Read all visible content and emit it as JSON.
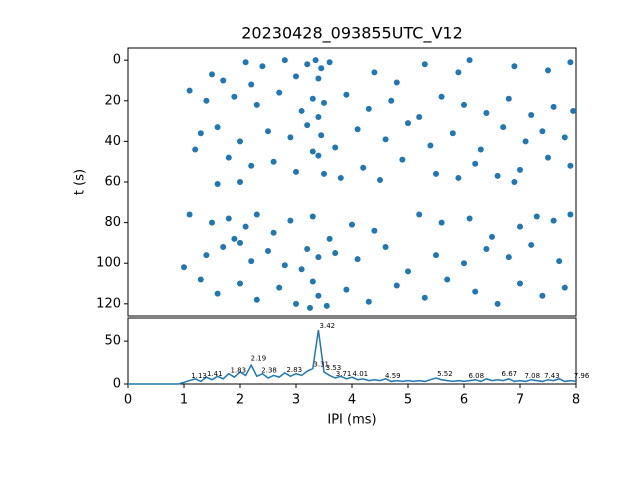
{
  "chart_data": [
    {
      "type": "scatter",
      "title": "20230428_093855UTC_V12",
      "y_label": "t (s)",
      "color": "#1f77b4",
      "xlim": [
        0,
        8
      ],
      "ylim": [
        126,
        -6
      ],
      "yticks": [
        0,
        20,
        40,
        60,
        80,
        100,
        120
      ],
      "x": [
        2.1,
        2.4,
        2.8,
        3.2,
        3.35,
        3.45,
        3.6,
        4.4,
        5.3,
        6.1,
        6.9,
        7.5,
        7.9,
        1.5,
        1.7,
        2.2,
        3.0,
        3.4,
        4.8,
        5.9,
        1.1,
        1.4,
        1.9,
        2.3,
        2.7,
        3.1,
        3.3,
        3.5,
        3.9,
        4.3,
        4.7,
        5.2,
        5.6,
        6.0,
        6.4,
        6.8,
        7.2,
        7.6,
        7.95,
        3.4,
        1.3,
        1.6,
        2.0,
        2.5,
        2.9,
        3.2,
        3.45,
        3.7,
        4.1,
        4.6,
        5.0,
        5.4,
        5.8,
        6.3,
        6.7,
        7.1,
        7.4,
        7.8,
        1.2,
        3.3,
        1.8,
        2.2,
        2.6,
        3.0,
        3.4,
        3.8,
        4.2,
        4.9,
        5.5,
        6.2,
        6.6,
        7.0,
        7.5,
        7.9,
        2.0,
        3.5,
        4.5,
        5.9,
        6.9,
        1.6,
        1.1,
        1.5,
        1.8,
        2.1,
        2.3,
        2.6,
        2.9,
        3.3,
        3.6,
        4.0,
        4.4,
        5.2,
        5.6,
        6.1,
        6.5,
        7.0,
        7.3,
        7.6,
        7.9,
        1.9,
        1.0,
        1.4,
        1.7,
        2.0,
        2.2,
        2.5,
        2.8,
        3.2,
        3.4,
        3.7,
        4.1,
        4.6,
        5.0,
        5.5,
        6.0,
        6.4,
        6.8,
        7.2,
        7.7,
        3.1,
        1.3,
        1.6,
        2.0,
        2.3,
        2.7,
        3.0,
        3.3,
        3.4,
        3.55,
        3.9,
        4.3,
        4.8,
        5.3,
        5.7,
        6.2,
        6.6,
        7.0,
        7.4,
        7.8,
        3.25
      ],
      "values": [
        1,
        3,
        0,
        2,
        0,
        4,
        1,
        6,
        2,
        0,
        3,
        5,
        1,
        7,
        10,
        12,
        8,
        9,
        11,
        6,
        15,
        20,
        18,
        22,
        16,
        25,
        19,
        21,
        17,
        24,
        20,
        28,
        18,
        22,
        26,
        19,
        27,
        23,
        25,
        28,
        36,
        33,
        40,
        35,
        38,
        32,
        37,
        43,
        34,
        39,
        31,
        42,
        36,
        44,
        33,
        40,
        35,
        38,
        44,
        45,
        48,
        52,
        50,
        55,
        47,
        58,
        53,
        49,
        56,
        51,
        57,
        54,
        48,
        52,
        60,
        56,
        59,
        58,
        60,
        61,
        76,
        80,
        78,
        82,
        76,
        85,
        79,
        77,
        88,
        81,
        84,
        76,
        80,
        78,
        87,
        82,
        77,
        79,
        76,
        88,
        102,
        96,
        92,
        90,
        99,
        94,
        101,
        93,
        97,
        95,
        98,
        92,
        104,
        96,
        100,
        93,
        97,
        91,
        99,
        103,
        108,
        115,
        110,
        118,
        112,
        120,
        109,
        116,
        121,
        113,
        119,
        111,
        117,
        108,
        114,
        120,
        110,
        116,
        112,
        122
      ]
    },
    {
      "type": "line",
      "x_label": "IPI (ms)",
      "color": "#1f77b4",
      "xlim": [
        0,
        8
      ],
      "xticks": [
        0,
        1,
        2,
        3,
        4,
        5,
        6,
        7,
        8
      ],
      "ylim": [
        0,
        77
      ],
      "yticks": [
        0,
        50
      ],
      "x": [
        0,
        0.1,
        0.2,
        0.3,
        0.4,
        0.5,
        0.6,
        0.7,
        0.8,
        0.9,
        1,
        1.1,
        1.2,
        1.3,
        1.4,
        1.5,
        1.6,
        1.7,
        1.8,
        1.9,
        2,
        2.1,
        2.2,
        2.3,
        2.4,
        2.5,
        2.6,
        2.7,
        2.8,
        2.9,
        3,
        3.1,
        3.2,
        3.3,
        3.4,
        3.5,
        3.6,
        3.7,
        3.8,
        3.9,
        4,
        4.1,
        4.2,
        4.3,
        4.4,
        4.5,
        4.6,
        4.7,
        4.8,
        4.9,
        5,
        5.1,
        5.2,
        5.3,
        5.4,
        5.5,
        5.6,
        5.7,
        5.8,
        5.9,
        6,
        6.1,
        6.2,
        6.3,
        6.4,
        6.5,
        6.6,
        6.7,
        6.8,
        6.9,
        7,
        7.1,
        7.2,
        7.3,
        7.4,
        7.5,
        7.6,
        7.7,
        7.8,
        7.9,
        8
      ],
      "values": [
        0,
        0,
        0,
        0,
        0,
        0,
        0,
        0,
        0,
        0,
        2,
        4,
        6,
        3,
        8,
        5,
        9,
        6,
        12,
        8,
        14,
        10,
        22,
        9,
        12,
        7,
        10,
        8,
        13,
        9,
        12,
        10,
        15,
        18,
        63,
        14,
        10,
        7,
        9,
        6,
        8,
        5,
        6,
        4,
        5,
        4,
        6,
        3,
        4,
        3,
        4,
        3,
        4,
        3,
        5,
        7,
        5,
        4,
        3,
        4,
        3,
        4,
        5,
        3,
        6,
        4,
        5,
        4,
        6,
        3,
        4,
        3,
        5,
        4,
        3,
        5,
        4,
        6,
        3,
        4,
        3
      ],
      "annotations": [
        {
          "text": "1.13",
          "x": 1.13,
          "y": 6
        },
        {
          "text": "1.41",
          "x": 1.41,
          "y": 8
        },
        {
          "text": "1.83",
          "x": 1.83,
          "y": 12
        },
        {
          "text": "2.19",
          "x": 2.19,
          "y": 26
        },
        {
          "text": "2.38",
          "x": 2.38,
          "y": 12
        },
        {
          "text": "2.83",
          "x": 2.83,
          "y": 13
        },
        {
          "text": "3.31",
          "x": 3.31,
          "y": 19
        },
        {
          "text": "3.42",
          "x": 3.42,
          "y": 64
        },
        {
          "text": "3.53",
          "x": 3.53,
          "y": 15
        },
        {
          "text": "3.71",
          "x": 3.71,
          "y": 8
        },
        {
          "text": "4.01",
          "x": 4.01,
          "y": 8
        },
        {
          "text": "4.59",
          "x": 4.59,
          "y": 6
        },
        {
          "text": "5.52",
          "x": 5.52,
          "y": 8
        },
        {
          "text": "6.08",
          "x": 6.08,
          "y": 6
        },
        {
          "text": "6.67",
          "x": 6.67,
          "y": 8
        },
        {
          "text": "7.08",
          "x": 7.08,
          "y": 6
        },
        {
          "text": "7.43",
          "x": 7.43,
          "y": 6
        },
        {
          "text": "7.96",
          "x": 7.96,
          "y": 6
        }
      ]
    }
  ]
}
